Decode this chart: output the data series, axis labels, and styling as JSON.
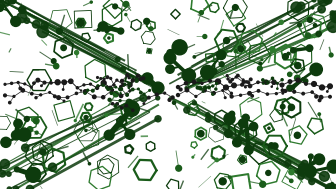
{
  "background_color": "#ffffff",
  "fig_width": 3.36,
  "fig_height": 1.89,
  "dpi": 100,
  "dark_green": "#0d3b0d",
  "medium_green": "#1a5c1a",
  "light_green": "#2e7a2e",
  "pale_green": "#5aaa5a",
  "black_mol": "#1a1a1a",
  "seed": 7
}
